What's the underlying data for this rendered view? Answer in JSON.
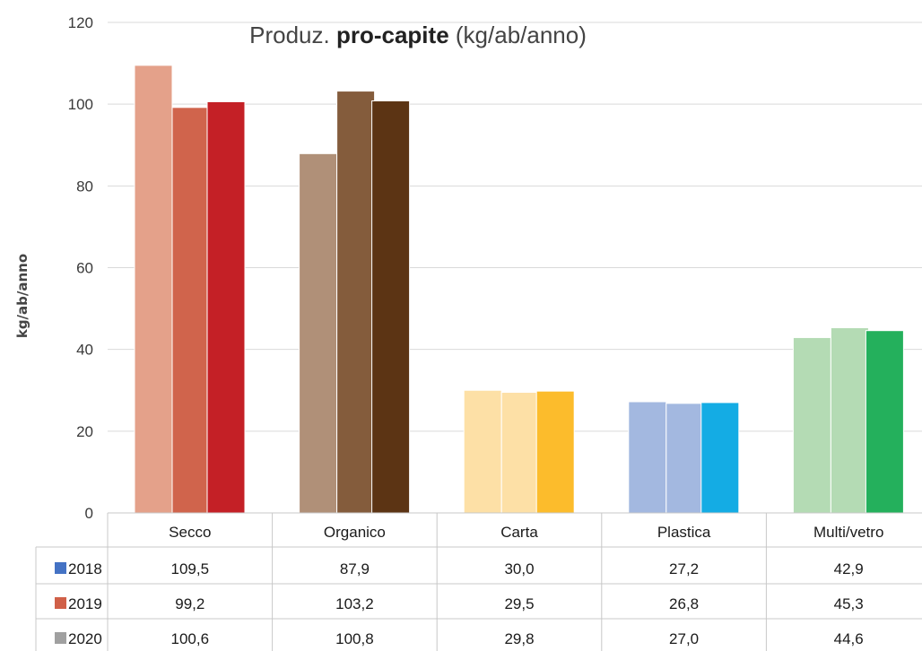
{
  "chart_data": {
    "type": "bar",
    "title_plain": "Produz.",
    "title_bold": "pro-capite",
    "title_unit": "(kg/ab/anno)",
    "ylabel": "kg/ab/anno",
    "ylim": [
      0,
      120
    ],
    "yticks": [
      "0",
      "20",
      "40",
      "60",
      "80",
      "100",
      "120"
    ],
    "categories": [
      "Secco",
      "Organico",
      "Carta",
      "Plastica",
      "Multi/vetro"
    ],
    "series": [
      {
        "name": "2018",
        "values": [
          109.5,
          87.9,
          30.0,
          27.2,
          42.9
        ],
        "legend_color": "#4472c4",
        "bar_colors": [
          "#e4a18a",
          "#b09078",
          "#fde0a6",
          "#a3b8e0",
          "#b4dbb4"
        ]
      },
      {
        "name": "2019",
        "values": [
          99.2,
          103.2,
          29.5,
          26.8,
          45.3
        ],
        "legend_color": "#d06048",
        "bar_colors": [
          "#d0644c",
          "#845c3c",
          "#fde0a6",
          "#a3b8e0",
          "#b4dbb4"
        ]
      },
      {
        "name": "2020",
        "values": [
          100.6,
          100.8,
          29.8,
          27.0,
          44.6
        ],
        "legend_color": "#a0a0a0",
        "bar_colors": [
          "#c42026",
          "#5c3414",
          "#fcbc2c",
          "#14ace4",
          "#24b05c"
        ]
      }
    ],
    "table": [
      [
        "109,5",
        "87,9",
        "30,0",
        "27,2",
        "42,9"
      ],
      [
        "99,2",
        "103,2",
        "29,5",
        "26,8",
        "45,3"
      ],
      [
        "100,6",
        "100,8",
        "29,8",
        "27,0",
        "44,6"
      ]
    ],
    "grid": true,
    "legend": "data-table-left"
  }
}
